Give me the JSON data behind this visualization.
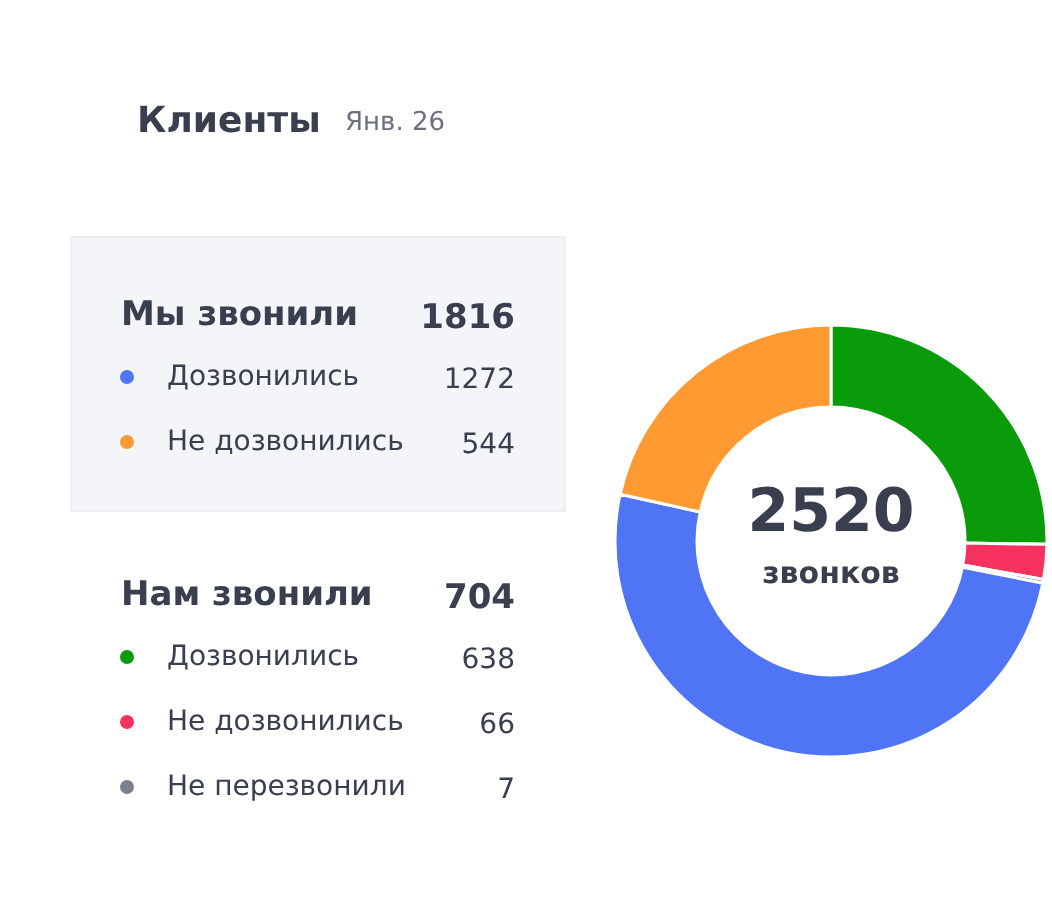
{
  "chart_data": {
    "type": "donut",
    "title": "Клиенты",
    "subtitle": "Янв. 26",
    "categories": [
      "Дозвонились",
      "Не дозвонились",
      "Дозвонились",
      "Не дозвонились",
      "Не перезвонили"
    ],
    "values": [
      1272,
      544,
      638,
      66,
      7
    ],
    "colors": [
      "#4f74f5",
      "#ff9a33",
      "#0a9b0a",
      "#f5325f",
      "#7c7f90"
    ],
    "annotations": [
      "Мы звонили",
      "1816",
      "Нам звонили",
      "704",
      "2520",
      "звонков"
    ],
    "data_labels": true,
    "legend": "left"
  }
}
